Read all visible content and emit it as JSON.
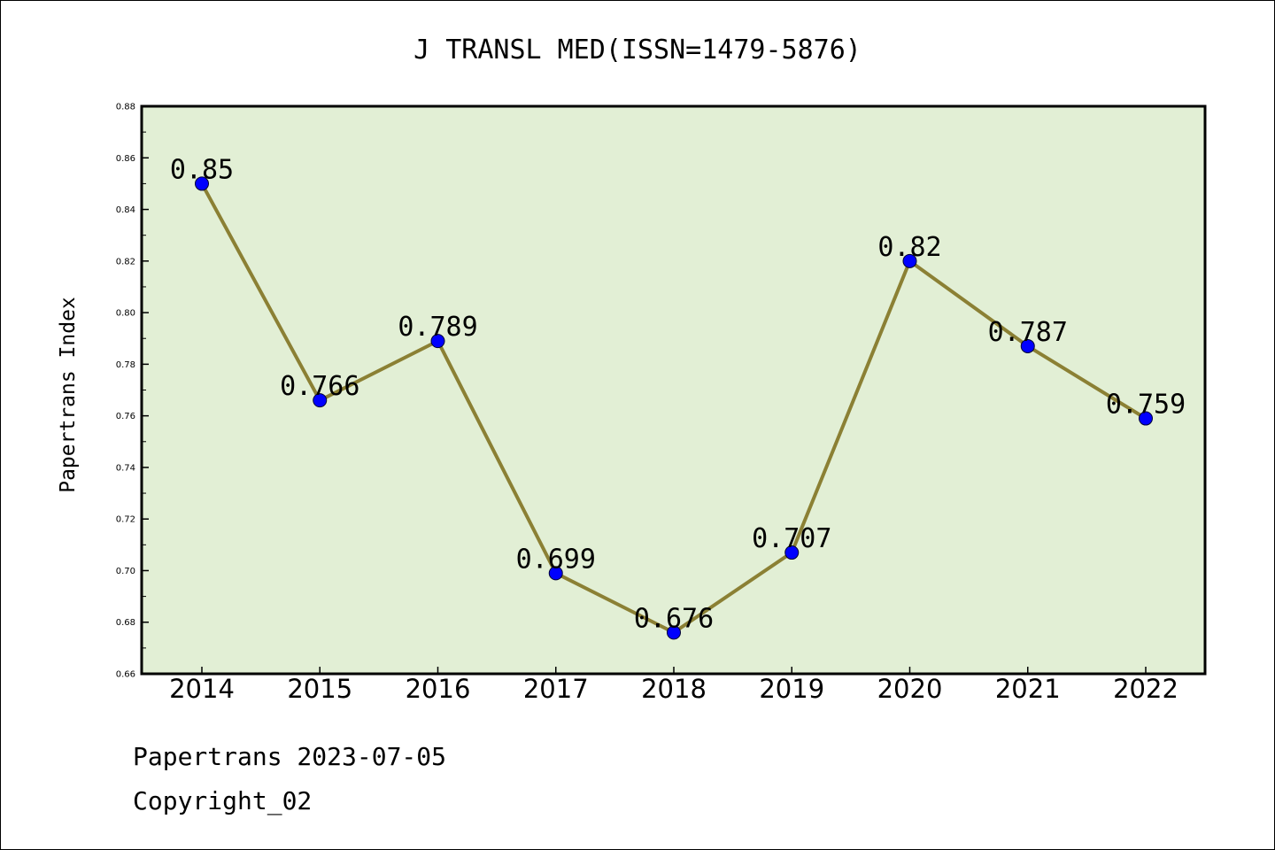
{
  "chart_data": {
    "type": "line",
    "title": "J TRANSL MED(ISSN=1479-5876)",
    "xlabel": "",
    "ylabel": "Papertrans Index",
    "categories": [
      "2014",
      "2015",
      "2016",
      "2017",
      "2018",
      "2019",
      "2020",
      "2021",
      "2022"
    ],
    "series": [
      {
        "values": [
          0.85,
          0.766,
          0.789,
          0.699,
          0.676,
          0.707,
          0.82,
          0.787,
          0.759
        ],
        "data_labels": [
          "0.85",
          "0.766",
          "0.789",
          "0.699",
          "0.676",
          "0.707",
          "0.82",
          "0.787",
          "0.759"
        ],
        "line_color": "#8b8034",
        "marker_color": "#0000ff"
      }
    ],
    "ylim": [
      0.66,
      0.88
    ],
    "yticks": [
      "0.66",
      "0.68",
      "0.70",
      "0.72",
      "0.74",
      "0.76",
      "0.78",
      "0.80",
      "0.82",
      "0.84",
      "0.86",
      "0.88"
    ],
    "grid": false,
    "legend": "none",
    "plot_background": "#e2efd5"
  },
  "footer": {
    "line1": "Papertrans 2023-07-05",
    "line2": "Copyright_02"
  }
}
